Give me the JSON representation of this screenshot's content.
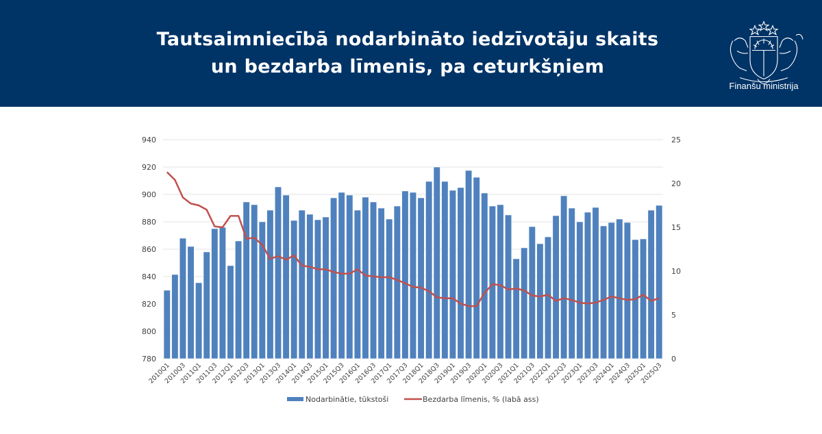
{
  "header": {
    "title_line1": "Tautsaimniecībā nodarbināto iedzīvotāju skaits",
    "title_line2": "un bezdarba līmenis, pa ceturkšņiem",
    "logo_icon": "coat-of-arms-icon",
    "org_name": "Finanšu ministrija",
    "background_color": "#003366"
  },
  "chart_data": {
    "type": "bar+line",
    "title": "Tautsaimniecībā nodarbināto iedzīvotāju skaits un bezdarba līmenis, pa ceturkšņiem",
    "xlabel": "",
    "ylabel": "",
    "y2label": "",
    "ylim": [
      780,
      940
    ],
    "y_ticks": [
      780,
      800,
      820,
      840,
      860,
      880,
      900,
      920,
      940
    ],
    "y2lim": [
      0,
      25
    ],
    "y2_ticks": [
      0,
      5,
      10,
      15,
      20,
      25
    ],
    "grid": true,
    "legend_position": "bottom",
    "x_tick_labels_shown": [
      "2010Q1",
      "2010Q3",
      "2011Q1",
      "2011Q3",
      "2012Q1",
      "2012Q3",
      "2013Q1",
      "2013Q3",
      "2014Q1",
      "2014Q3",
      "2015Q1",
      "2015Q3",
      "2016Q1",
      "2016Q3",
      "2017Q1",
      "2017Q3",
      "2018Q1",
      "2018Q3",
      "2019Q1",
      "2019Q3",
      "2020Q1",
      "2020Q3",
      "2021Q1",
      "2021Q3",
      "2022Q1",
      "2022Q3",
      "2023Q1",
      "2023Q3",
      "2024Q1",
      "2024Q3",
      "2025Q1",
      "2025Q3"
    ],
    "categories": [
      "2010Q1",
      "2010Q2",
      "2010Q3",
      "2010Q4",
      "2011Q1",
      "2011Q2",
      "2011Q3",
      "2011Q4",
      "2012Q1",
      "2012Q2",
      "2012Q3",
      "2012Q4",
      "2013Q1",
      "2013Q2",
      "2013Q3",
      "2013Q4",
      "2014Q1",
      "2014Q2",
      "2014Q3",
      "2014Q4",
      "2015Q1",
      "2015Q2",
      "2015Q3",
      "2015Q4",
      "2016Q1",
      "2016Q2",
      "2016Q3",
      "2016Q4",
      "2017Q1",
      "2017Q2",
      "2017Q3",
      "2017Q4",
      "2018Q1",
      "2018Q2",
      "2018Q3",
      "2018Q4",
      "2019Q1",
      "2019Q2",
      "2019Q3",
      "2019Q4",
      "2020Q1",
      "2020Q2",
      "2020Q3",
      "2020Q4",
      "2021Q1",
      "2021Q2",
      "2021Q3",
      "2021Q4",
      "2022Q1",
      "2022Q2",
      "2022Q3",
      "2022Q4",
      "2023Q1",
      "2023Q2",
      "2023Q3",
      "2023Q4",
      "2024Q1",
      "2024Q2",
      "2024Q3",
      "2024Q4",
      "2025Q1",
      "2025Q2",
      "2025Q3"
    ],
    "series": [
      {
        "name": "Nodarbinātie, tūkstoši",
        "type": "bar",
        "axis": "left",
        "color": "#4f81bd",
        "values": [
          830,
          841.5,
          868,
          862,
          835.5,
          858,
          875,
          876,
          848,
          866,
          894.5,
          892.5,
          880,
          888.5,
          905.5,
          899.5,
          881,
          888.5,
          885.5,
          881.5,
          883.5,
          897.5,
          901.5,
          899.5,
          888.5,
          898,
          894.5,
          890,
          882,
          891.5,
          902.5,
          901.5,
          897.5,
          909.5,
          920,
          909.5,
          903,
          905,
          917.5,
          912.5,
          901,
          891.5,
          892.5,
          885,
          853,
          861,
          876.5,
          864,
          869,
          884.5,
          899,
          890,
          880,
          887,
          890.5,
          877,
          879.5,
          882,
          879.5,
          867,
          867.5,
          888.5,
          892
        ]
      },
      {
        "name": "Bezdarba līmenis, % (labā ass)",
        "type": "line",
        "axis": "right",
        "color": "#c0504d",
        "values": [
          21.3,
          20.4,
          18.4,
          17.7,
          17.5,
          17.0,
          15.1,
          15.0,
          16.3,
          16.3,
          13.7,
          13.8,
          13.0,
          11.4,
          11.7,
          11.3,
          11.8,
          10.6,
          10.5,
          10.2,
          10.2,
          9.9,
          9.7,
          9.7,
          10.2,
          9.5,
          9.4,
          9.3,
          9.3,
          9.0,
          8.6,
          8.2,
          8.1,
          7.7,
          7.0,
          6.9,
          6.9,
          6.3,
          6.0,
          6.0,
          7.5,
          8.5,
          8.4,
          7.9,
          8.0,
          7.8,
          7.2,
          7.1,
          7.3,
          6.6,
          6.9,
          6.7,
          6.4,
          6.3,
          6.4,
          6.7,
          7.1,
          6.9,
          6.7,
          6.8,
          7.3,
          6.6,
          6.9
        ]
      }
    ]
  },
  "legend": {
    "bar_label": "Nodarbinātie, tūkstoši",
    "line_label": "Bezdarba līmenis, % (labā ass)"
  }
}
